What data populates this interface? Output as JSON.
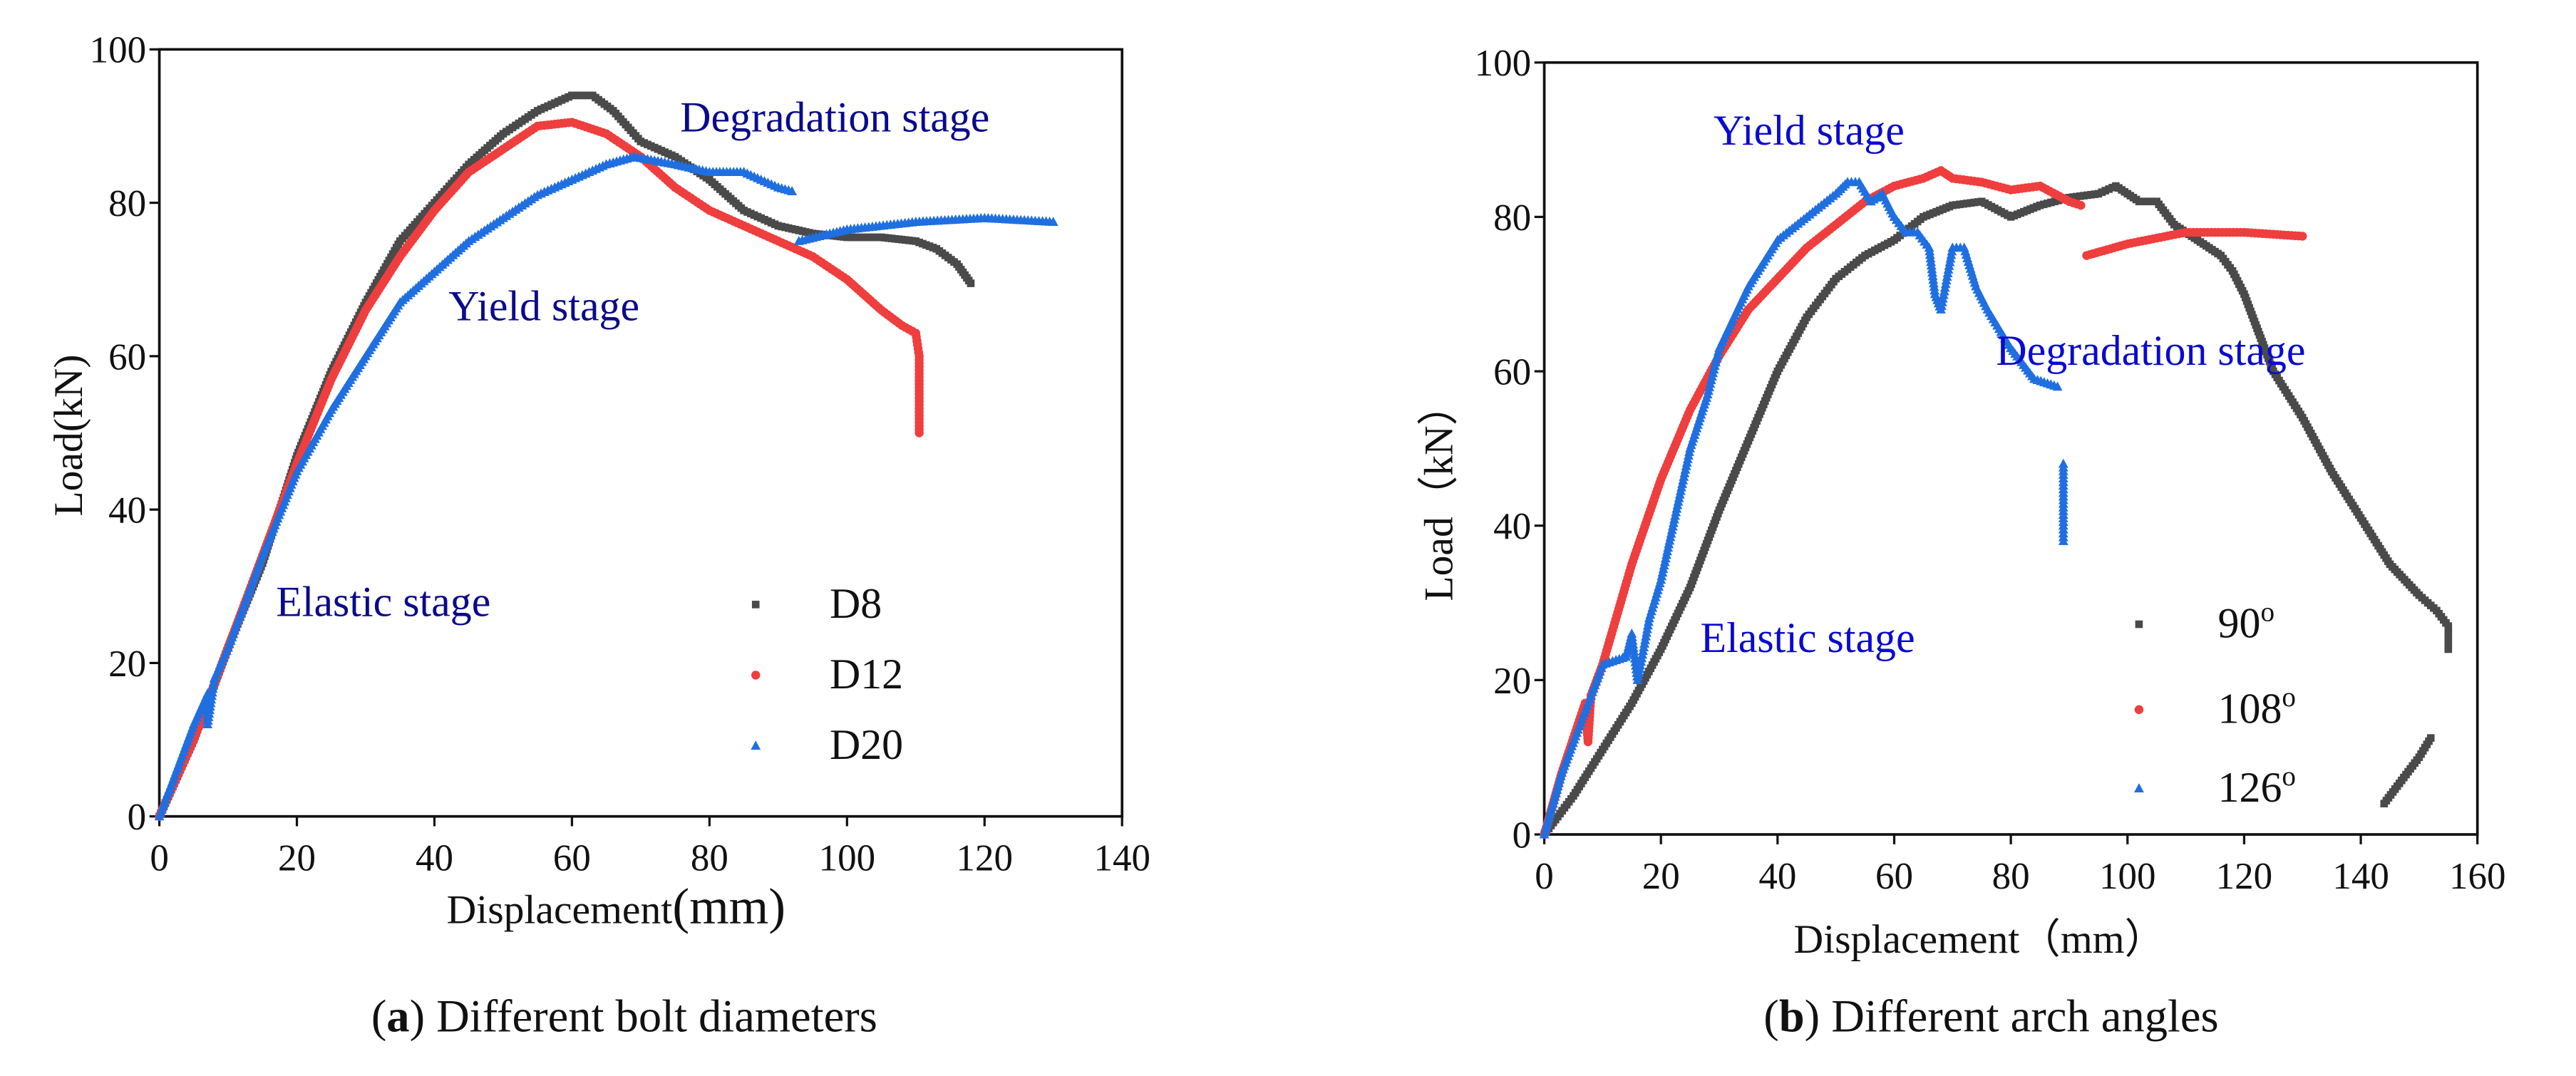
{
  "chart_data": [
    {
      "type": "scatter",
      "caption_letter": "a",
      "caption": " Different bolt diameters",
      "xlabel": "Displacement",
      "xlabel_unit": "(mm)",
      "ylabel": "Load(kN)",
      "xlim": [
        0,
        140
      ],
      "ylim": [
        0,
        100
      ],
      "xticks": [
        0,
        20,
        40,
        60,
        80,
        100,
        120,
        140
      ],
      "yticks": [
        0,
        20,
        40,
        60,
        80,
        100
      ],
      "grid": false,
      "legend_placement": "lower-right",
      "annotations": [
        {
          "text": "Degradation stage",
          "color": "#0a0a8c"
        },
        {
          "text": "Yield stage",
          "color": "#0a0a8c"
        },
        {
          "text": "Elastic stage",
          "color": "#0a0a8c"
        }
      ],
      "series": [
        {
          "name": "D8",
          "marker": "square",
          "color": "#4a4a4a",
          "points": [
            [
              0,
              0
            ],
            [
              5,
              10
            ],
            [
              10,
              22
            ],
            [
              15,
              33
            ],
            [
              20,
              47
            ],
            [
              25,
              58
            ],
            [
              30,
              67
            ],
            [
              35,
              75
            ],
            [
              40,
              80
            ],
            [
              45,
              85
            ],
            [
              50,
              89
            ],
            [
              55,
              92
            ],
            [
              60,
              94
            ],
            [
              63,
              94
            ],
            [
              66,
              92
            ],
            [
              70,
              88
            ],
            [
              75,
              86
            ],
            [
              80,
              83
            ],
            [
              85,
              79
            ],
            [
              90,
              77
            ],
            [
              95,
              76
            ],
            [
              100,
              75.5
            ],
            [
              105,
              75.5
            ],
            [
              110,
              75
            ],
            [
              113,
              74
            ],
            [
              116,
              72
            ],
            [
              118,
              69.5
            ]
          ]
        },
        {
          "name": "D12",
          "marker": "circle",
          "color": "#ef3e3e",
          "points": [
            [
              0,
              0
            ],
            [
              5,
              10
            ],
            [
              10,
              22
            ],
            [
              15,
              34
            ],
            [
              20,
              46
            ],
            [
              25,
              57
            ],
            [
              30,
              66
            ],
            [
              35,
              73
            ],
            [
              40,
              79
            ],
            [
              45,
              84
            ],
            [
              50,
              87
            ],
            [
              55,
              90
            ],
            [
              60,
              90.5
            ],
            [
              65,
              89
            ],
            [
              70,
              86
            ],
            [
              75,
              82
            ],
            [
              80,
              79
            ],
            [
              85,
              77
            ],
            [
              90,
              75
            ],
            [
              95,
              73
            ],
            [
              100,
              70
            ],
            [
              105,
              66
            ],
            [
              108,
              64
            ],
            [
              110,
              63
            ],
            [
              110.5,
              60
            ],
            [
              110.5,
              55
            ],
            [
              110.5,
              50
            ]
          ]
        },
        {
          "name": "D20",
          "marker": "triangle",
          "color": "#1f6fe0",
          "points": [
            [
              0,
              0
            ],
            [
              5,
              12
            ],
            [
              7,
              16
            ],
            [
              7,
              12
            ],
            [
              8,
              18
            ],
            [
              10,
              22
            ],
            [
              15,
              34
            ],
            [
              20,
              45
            ],
            [
              25,
              53
            ],
            [
              30,
              60
            ],
            [
              35,
              67
            ],
            [
              40,
              71
            ],
            [
              45,
              75
            ],
            [
              50,
              78
            ],
            [
              55,
              81
            ],
            [
              60,
              83
            ],
            [
              65,
              85
            ],
            [
              69,
              86
            ],
            [
              75,
              85
            ],
            [
              80,
              84
            ],
            [
              85,
              84
            ],
            [
              90,
              82
            ],
            [
              92,
              81.5
            ],
            null,
            [
              93,
              75
            ],
            [
              100,
              76.5
            ],
            [
              110,
              77.5
            ],
            [
              120,
              78
            ],
            [
              130,
              77.5
            ]
          ]
        }
      ]
    },
    {
      "type": "scatter",
      "caption_letter": "b",
      "caption": " Different arch angles",
      "xlabel": "Displacement（mm）",
      "ylabel": "Load（kN）",
      "xlim": [
        0,
        160
      ],
      "ylim": [
        0,
        100
      ],
      "xticks": [
        0,
        20,
        40,
        60,
        80,
        100,
        120,
        140,
        160
      ],
      "yticks": [
        0,
        20,
        40,
        60,
        80,
        100
      ],
      "grid": false,
      "legend_placement": "lower-right",
      "annotations": [
        {
          "text": "Yield stage",
          "color": "#0a0ad0"
        },
        {
          "text": "Degradation stage",
          "color": "#0a0ad0"
        },
        {
          "text": "Elastic stage",
          "color": "#0a0ad0"
        }
      ],
      "series": [
        {
          "name": "90",
          "marker": "square",
          "color": "#4a4a4a",
          "points": [
            [
              0,
              0
            ],
            [
              5,
              5
            ],
            [
              10,
              11
            ],
            [
              15,
              17
            ],
            [
              20,
              24
            ],
            [
              25,
              32
            ],
            [
              30,
              42
            ],
            [
              35,
              51
            ],
            [
              40,
              60
            ],
            [
              45,
              67
            ],
            [
              50,
              72
            ],
            [
              55,
              75
            ],
            [
              60,
              77
            ],
            [
              65,
              80
            ],
            [
              70,
              81.5
            ],
            [
              75,
              82
            ],
            [
              80,
              80
            ],
            [
              85,
              81.5
            ],
            [
              90,
              82.5
            ],
            [
              95,
              83
            ],
            [
              98,
              84
            ],
            [
              100,
              83
            ],
            [
              102,
              82
            ],
            [
              105,
              82
            ],
            [
              108,
              79
            ],
            [
              112,
              77
            ],
            [
              116,
              75
            ],
            [
              118,
              73
            ],
            [
              120,
              70
            ],
            [
              122,
              66
            ],
            [
              125,
              60
            ],
            [
              130,
              54
            ],
            [
              135,
              47
            ],
            [
              140,
              41
            ],
            [
              145,
              35
            ],
            [
              150,
              31
            ],
            [
              153,
              29
            ],
            [
              155,
              27
            ],
            [
              155,
              24
            ],
            null,
            [
              144,
              4
            ],
            [
              147,
              7
            ],
            [
              150,
              10
            ],
            [
              152,
              12.5
            ]
          ]
        },
        {
          "name": "108",
          "marker": "circle",
          "color": "#ef3e3e",
          "points": [
            [
              0,
              0
            ],
            [
              3,
              8
            ],
            [
              7,
              17
            ],
            [
              7.5,
              12
            ],
            [
              8,
              18
            ],
            [
              10,
              22
            ],
            [
              15,
              35
            ],
            [
              20,
              46
            ],
            [
              25,
              55
            ],
            [
              30,
              62
            ],
            [
              35,
              68
            ],
            [
              40,
              72
            ],
            [
              45,
              76
            ],
            [
              50,
              79
            ],
            [
              55,
              82
            ],
            [
              60,
              84
            ],
            [
              65,
              85
            ],
            [
              68,
              86
            ],
            [
              70,
              85
            ],
            [
              75,
              84.5
            ],
            [
              80,
              83.5
            ],
            [
              85,
              84
            ],
            [
              90,
              82
            ],
            [
              92,
              81.5
            ],
            null,
            [
              93,
              75
            ],
            [
              100,
              76.5
            ],
            [
              110,
              78
            ],
            [
              120,
              78
            ],
            [
              130,
              77.5
            ]
          ]
        },
        {
          "name": "126",
          "marker": "triangle",
          "color": "#1f6fe0",
          "points": [
            [
              0,
              0
            ],
            [
              3,
              8
            ],
            [
              6,
              14
            ],
            [
              10,
              22
            ],
            [
              14,
              23
            ],
            [
              15,
              26
            ],
            [
              16,
              20
            ],
            [
              18,
              28
            ],
            [
              20,
              33
            ],
            [
              25,
              50
            ],
            [
              28,
              57
            ],
            [
              30,
              63
            ],
            [
              35,
              71
            ],
            [
              40,
              77
            ],
            [
              45,
              80
            ],
            [
              50,
              83
            ],
            [
              52,
              84.5
            ],
            [
              54,
              84.5
            ],
            [
              56,
              82
            ],
            [
              58,
              83
            ],
            [
              60,
              80
            ],
            [
              62,
              78
            ],
            [
              64,
              78
            ],
            [
              66,
              76
            ],
            [
              67,
              70
            ],
            [
              68,
              68
            ],
            [
              70,
              76
            ],
            [
              72,
              76
            ],
            [
              74,
              71
            ],
            [
              76,
              68
            ],
            [
              80,
              63
            ],
            [
              84,
              59
            ],
            [
              88,
              58
            ],
            null,
            [
              89,
              48
            ],
            [
              89,
              40
            ],
            [
              89,
              38
            ]
          ]
        }
      ],
      "legend_suffix": "o"
    }
  ]
}
